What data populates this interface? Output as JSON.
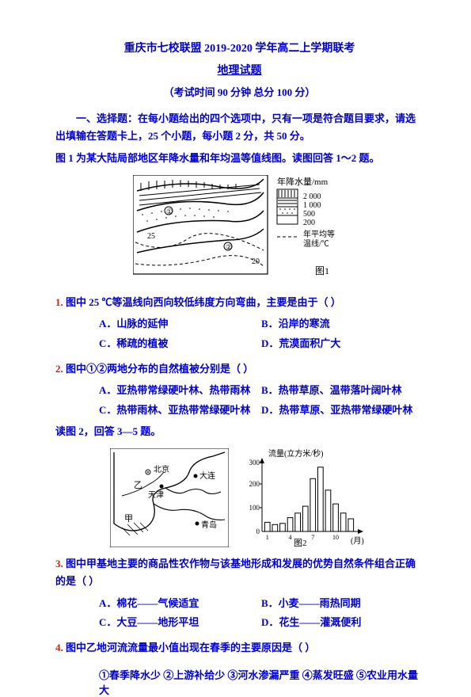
{
  "header": {
    "title_line1": "重庆市七校联盟 2019-2020 学年高二上学期联考",
    "title_line2": "地理试题",
    "exam_info_prefix": "（考试时间 ",
    "exam_info_time": "90 分钟",
    "exam_info_score_label": "   总分 ",
    "exam_info_score": "100 分",
    "exam_info_suffix": "）",
    "title_color": "#0000cd"
  },
  "section1": {
    "text": "一、选择题：在每小题给出的四个选项中，只有一项是符合题目要求，请选出填输在答题卡上，25 个小题，每小题 2 分，共 50 分。",
    "color": "#0000cd"
  },
  "context1": {
    "text": "图 1 为某大陆局部地区年降水量和年均温等值线图。读图回答 1～2 题。",
    "color": "#0000cd"
  },
  "fig1": {
    "legend_title": "年降水量/mm",
    "legend_items": [
      "2 000",
      "1 000",
      "500",
      "200"
    ],
    "temp_label_top": "年平均等",
    "temp_label_bot": "温线/℃",
    "caption": "图1",
    "iso_labels": [
      "25",
      "20"
    ],
    "colors": {
      "frame": "#000000",
      "hatch": "#000000",
      "contour": "#000000",
      "text": "#000000",
      "bg": "#ffffff"
    }
  },
  "q1": {
    "num": "1.",
    "stem": "图中 25 ℃等温线向西向较低纬度方向弯曲，主要是由于（   ）",
    "stem_color": "#0000cd",
    "options": {
      "A": "A．山脉的延伸",
      "B": "B．沿岸的寒流",
      "C": "C．稀疏的植被",
      "D": "D．荒漠面积广大"
    },
    "opt_color": "#0000cd"
  },
  "q2": {
    "num": "2.",
    "stem": "图中①②两地分布的自然植被分别是（   ）",
    "stem_color": "#0000cd",
    "options": {
      "A": "A．亚热带常绿硬叶林、热带雨林",
      "B": "B．热带草原、温带落叶阔叶林",
      "C": "C．热带雨林、亚热带常绿硬叶林",
      "D": "D．热带草原、亚热带常绿硬叶林"
    },
    "opt_color": "#0000cd"
  },
  "context2": {
    "text": "读图 2，回答 3—5 题。",
    "color": "#0000cd"
  },
  "fig2": {
    "caption": "图2",
    "map": {
      "cities": [
        "北京",
        "天津",
        "大连",
        "青岛"
      ],
      "region_labels": [
        "甲",
        "乙"
      ],
      "colors": {
        "land": "#ffffff",
        "sea": "#ffffff",
        "border": "#000000",
        "hatch": "#000000",
        "coast": "#000000"
      }
    },
    "chart": {
      "type": "bar",
      "ylabel": "流量(立方米/秒)",
      "xlabel": "(月)",
      "categories": [
        1,
        2,
        3,
        4,
        5,
        6,
        7,
        8,
        9,
        10,
        11,
        12
      ],
      "values": [
        40,
        30,
        35,
        60,
        80,
        110,
        230,
        280,
        180,
        120,
        80,
        55
      ],
      "ylim": [
        0,
        300
      ],
      "ytick_step": 100,
      "bar_color": "#ffffff",
      "bar_border": "#000000",
      "axis_color": "#000000",
      "label_fontsize": 9
    }
  },
  "q3": {
    "num": "3.",
    "stem": "图中甲基地主要的商品性农作物与该基地形成和发展的优势自然条件组合正确的是（   ）",
    "stem_color": "#0000cd",
    "options": {
      "A": "A．棉花——气候适宜",
      "B": "B．小麦——雨热同期",
      "C": "C．大豆——地形平坦",
      "D": "D．花生——灌溉便利"
    },
    "opt_color": "#0000cd"
  },
  "q4": {
    "num": "4.",
    "stem": "图中乙地河流流量最小值出现在春季的主要原因是（   ）",
    "stem_color": "#0000cd",
    "choices_line": "①春季降水少  ②上游补给少  ③河水渗漏严重  ④蒸发旺盛  ⑤农业用水量大",
    "choices_color": "#0000cd"
  }
}
